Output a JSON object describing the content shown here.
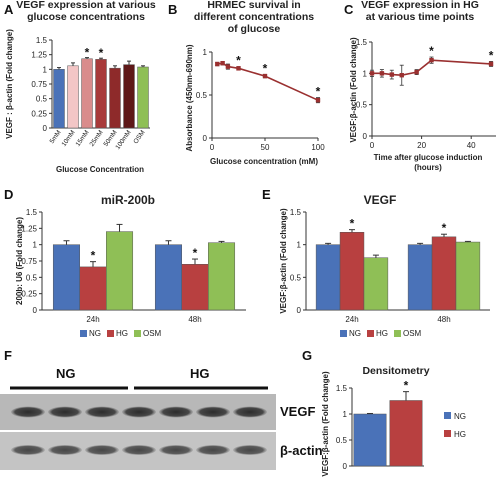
{
  "panels": {
    "A": "A",
    "B": "B",
    "C": "C",
    "D": "D",
    "E": "E",
    "F": "F",
    "G": "G"
  },
  "chart_data": [
    {
      "id": "A",
      "type": "bar",
      "title_lines": [
        "VEGF expression at various",
        "glucose concentrations"
      ],
      "ylabel": "VEGF : β-actin (Fold change)",
      "xlabel": "Glucose Concentration",
      "categories": [
        "5mM",
        "10mM",
        "15mM",
        "25mM",
        "50mM",
        "100mM",
        "OSM"
      ],
      "values": [
        1.0,
        1.06,
        1.18,
        1.17,
        1.02,
        1.08,
        1.04
      ],
      "errors": [
        0.03,
        0.05,
        0.02,
        0.02,
        0.04,
        0.06,
        0.02
      ],
      "colors": [
        "#4a72b8",
        "#f3c6c6",
        "#d98c8c",
        "#a83a3a",
        "#8e2a2a",
        "#5e1818",
        "#8fbf56"
      ],
      "significant": [
        false,
        false,
        true,
        true,
        false,
        false,
        false
      ],
      "ylim": [
        0,
        1.5
      ],
      "yticks": [
        "0",
        "0.25",
        "0.5",
        "0.75",
        "1",
        "1.25",
        "1.5"
      ]
    },
    {
      "id": "B",
      "type": "line",
      "title_lines": [
        "HRMEC survival in",
        "different concentrations",
        "of glucose"
      ],
      "ylabel": "Absorbance (450nm-690nm)",
      "xlabel": "Glucose concentration (mM)",
      "x": [
        5,
        10,
        15,
        25,
        50,
        100
      ],
      "y": [
        0.86,
        0.87,
        0.83,
        0.81,
        0.72,
        0.44
      ],
      "errors": [
        0.02,
        0.02,
        0.03,
        0.02,
        0.02,
        0.03
      ],
      "significant": [
        false,
        false,
        false,
        true,
        true,
        true
      ],
      "color": "#9a3030",
      "xlim": [
        0,
        100
      ],
      "ylim": [
        0,
        1
      ],
      "xticks": [
        "0",
        "50",
        "100"
      ],
      "yticks": [
        "0",
        "0.5",
        "1"
      ]
    },
    {
      "id": "C",
      "type": "line",
      "title_lines": [
        "VEGF expression in HG",
        "at various time points"
      ],
      "ylabel": "VEGF:β-actin (Fold change)",
      "xlabel_lines": [
        "Time after glucose induction",
        "(hours)"
      ],
      "x": [
        0,
        4,
        8,
        12,
        18,
        24,
        48
      ],
      "y": [
        1.0,
        1.0,
        0.98,
        0.97,
        1.02,
        1.21,
        1.15
      ],
      "errors": [
        0.05,
        0.06,
        0.07,
        0.16,
        0.04,
        0.05,
        0.04
      ],
      "significant": [
        false,
        false,
        false,
        false,
        false,
        true,
        true
      ],
      "color": "#9a3030",
      "xlim": [
        0,
        50
      ],
      "ylim": [
        0,
        1.5
      ],
      "xticks": [
        "0",
        "20",
        "40"
      ],
      "yticks": [
        "0",
        "0.5",
        "1",
        "1.5"
      ]
    },
    {
      "id": "D",
      "type": "bar",
      "title": "miR-200b",
      "ylabel": "200b: U6 (Fold change)",
      "categories": [
        "24h",
        "48h"
      ],
      "series": [
        {
          "name": "NG",
          "values": [
            1.0,
            1.0
          ],
          "errors": [
            0.06,
            0.06
          ],
          "color": "#4a72b8",
          "significant": [
            false,
            false
          ]
        },
        {
          "name": "HG",
          "values": [
            0.66,
            0.7
          ],
          "errors": [
            0.08,
            0.08
          ],
          "color": "#b84040",
          "significant": [
            true,
            true
          ]
        },
        {
          "name": "OSM",
          "values": [
            1.2,
            1.03
          ],
          "errors": [
            0.11,
            0.02
          ],
          "color": "#8fbf56",
          "significant": [
            false,
            false
          ]
        }
      ],
      "ylim": [
        0,
        1.5
      ],
      "yticks": [
        "0",
        "0.25",
        "0.5",
        "0.75",
        "1",
        "1.25",
        "1.5"
      ],
      "legend": [
        "NG",
        "HG",
        "OSM"
      ]
    },
    {
      "id": "E",
      "type": "bar",
      "title": "VEGF",
      "ylabel": "VEGF:β-actin (Fold change)",
      "categories": [
        "24h",
        "48h"
      ],
      "series": [
        {
          "name": "NG",
          "values": [
            1.0,
            1.0
          ],
          "errors": [
            0.02,
            0.02
          ],
          "color": "#4a72b8",
          "significant": [
            false,
            false
          ]
        },
        {
          "name": "HG",
          "values": [
            1.19,
            1.12
          ],
          "errors": [
            0.04,
            0.04
          ],
          "color": "#b84040",
          "significant": [
            true,
            true
          ]
        },
        {
          "name": "OSM",
          "values": [
            0.8,
            1.04
          ],
          "errors": [
            0.04,
            0.01
          ],
          "color": "#8fbf56",
          "significant": [
            false,
            false
          ]
        }
      ],
      "ylim": [
        0,
        1.5
      ],
      "yticks": [
        "0",
        "0.5",
        "1",
        "1.5"
      ],
      "legend": [
        "NG",
        "HG",
        "OSM"
      ]
    },
    {
      "id": "G",
      "type": "bar",
      "title": "Densitometry",
      "ylabel": "VEGF:β-actin (Fold change)",
      "categories": [
        "NG",
        "HG"
      ],
      "values": [
        1.0,
        1.26
      ],
      "errors": [
        0.01,
        0.17
      ],
      "colors": [
        "#4a72b8",
        "#b84040"
      ],
      "significant": [
        false,
        true
      ],
      "ylim": [
        0,
        1.5
      ],
      "yticks": [
        "0",
        "0.5",
        "1",
        "1.5"
      ],
      "legend": [
        "NG",
        "HG"
      ]
    }
  ],
  "blot": {
    "group_labels": [
      "NG",
      "HG"
    ],
    "band_labels": [
      "VEGF",
      "β-actin"
    ],
    "lanes": 7
  },
  "star": "*"
}
